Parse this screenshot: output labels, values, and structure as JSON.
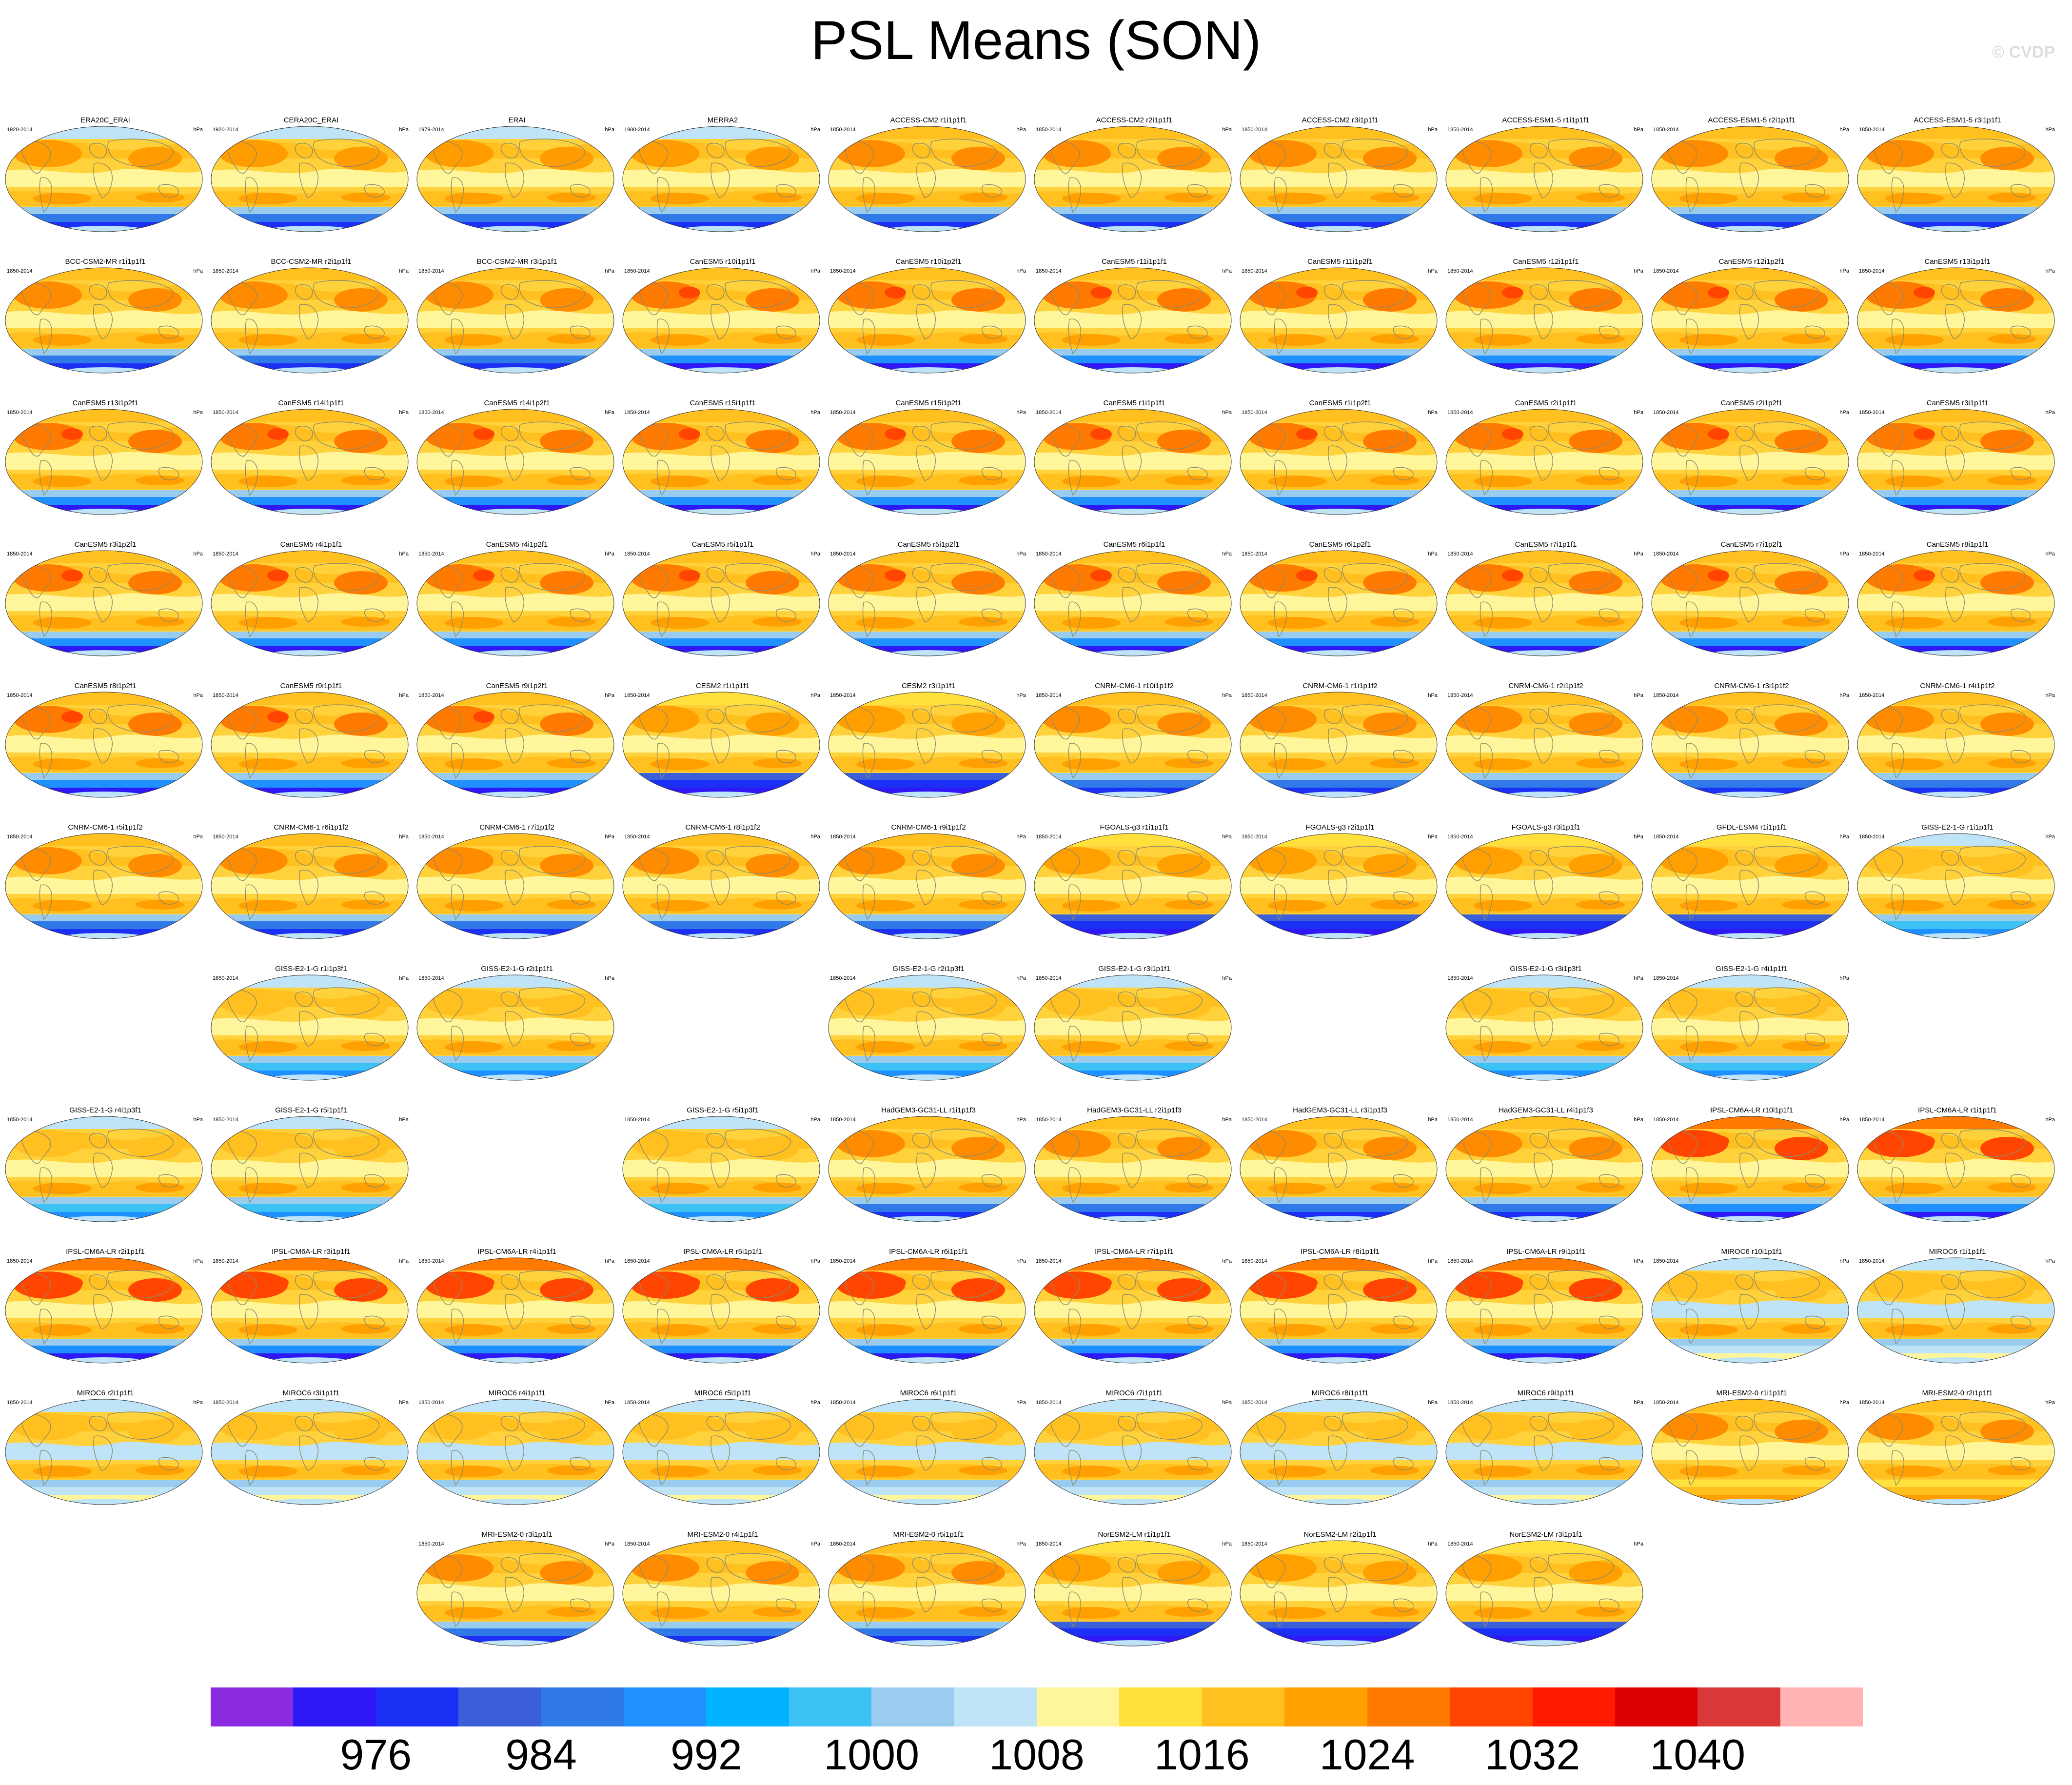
{
  "title": "PSL Means (SON)",
  "credit": "© CVDP",
  "colorbar": {
    "colors": [
      "#8a2be2",
      "#2e18f5",
      "#1b2ff5",
      "#3a5fd9",
      "#2f79e8",
      "#1e90ff",
      "#00b2ff",
      "#3cc2f5",
      "#99ccee",
      "#bfe3f7",
      "#fff59a",
      "#ffe03c",
      "#ffc020",
      "#ffa000",
      "#ff7a00",
      "#ff4500",
      "#ff1a00",
      "#dd0000",
      "#d93838",
      "#ffb3b3"
    ],
    "labels": [
      "976",
      "984",
      "992",
      "1000",
      "1008",
      "1016",
      "1024",
      "1032",
      "1040"
    ]
  },
  "panels": [
    {
      "name": "ERA20C_ERAI",
      "years": "1920-2014",
      "units": "hPa",
      "row": 0,
      "col": 0,
      "style": "obs"
    },
    {
      "name": "CERA20C_ERAI",
      "years": "1920-2014",
      "units": "hPa",
      "row": 0,
      "col": 1,
      "style": "obs"
    },
    {
      "name": "ERAI",
      "years": "1979-2014",
      "units": "hPa",
      "row": 0,
      "col": 2,
      "style": "obs"
    },
    {
      "name": "MERRA2",
      "years": "1980-2014",
      "units": "hPa",
      "row": 0,
      "col": 3,
      "style": "obs"
    },
    {
      "name": "ACCESS-CM2 r1i1p1f1",
      "years": "1850-2014",
      "units": "hPa",
      "row": 0,
      "col": 4,
      "style": "warm"
    },
    {
      "name": "ACCESS-CM2 r2i1p1f1",
      "years": "1850-2014",
      "units": "hPa",
      "row": 0,
      "col": 5,
      "style": "warm"
    },
    {
      "name": "ACCESS-CM2 r3i1p1f1",
      "years": "1850-2014",
      "units": "hPa",
      "row": 0,
      "col": 6,
      "style": "warm"
    },
    {
      "name": "ACCESS-ESM1-5 r1i1p1f1",
      "years": "1850-2014",
      "units": "hPa",
      "row": 0,
      "col": 7,
      "style": "warm"
    },
    {
      "name": "ACCESS-ESM1-5 r2i1p1f1",
      "years": "1850-2014",
      "units": "hPa",
      "row": 0,
      "col": 8,
      "style": "warm"
    },
    {
      "name": "ACCESS-ESM1-5 r3i1p1f1",
      "years": "1850-2014",
      "units": "hPa",
      "row": 0,
      "col": 9,
      "style": "warm"
    },
    {
      "name": "BCC-CSM2-MR r1i1p1f1",
      "years": "1850-2014",
      "units": "hPa",
      "row": 1,
      "col": 0,
      "style": "warm"
    },
    {
      "name": "BCC-CSM2-MR r2i1p1f1",
      "years": "1850-2014",
      "units": "hPa",
      "row": 1,
      "col": 1,
      "style": "warm"
    },
    {
      "name": "BCC-CSM2-MR r3i1p1f1",
      "years": "1850-2014",
      "units": "hPa",
      "row": 1,
      "col": 2,
      "style": "warm"
    },
    {
      "name": "CanESM5 r10i1p1f1",
      "years": "1850-2014",
      "units": "hPa",
      "row": 1,
      "col": 3,
      "style": "can"
    },
    {
      "name": "CanESM5 r10i1p2f1",
      "years": "1850-2014",
      "units": "hPa",
      "row": 1,
      "col": 4,
      "style": "can"
    },
    {
      "name": "CanESM5 r11i1p1f1",
      "years": "1850-2014",
      "units": "hPa",
      "row": 1,
      "col": 5,
      "style": "can"
    },
    {
      "name": "CanESM5 r11i1p2f1",
      "years": "1850-2014",
      "units": "hPa",
      "row": 1,
      "col": 6,
      "style": "can"
    },
    {
      "name": "CanESM5 r12i1p1f1",
      "years": "1850-2014",
      "units": "hPa",
      "row": 1,
      "col": 7,
      "style": "can"
    },
    {
      "name": "CanESM5 r12i1p2f1",
      "years": "1850-2014",
      "units": "hPa",
      "row": 1,
      "col": 8,
      "style": "can"
    },
    {
      "name": "CanESM5 r13i1p1f1",
      "years": "1850-2014",
      "units": "hPa",
      "row": 1,
      "col": 9,
      "style": "can"
    },
    {
      "name": "CanESM5 r13i1p2f1",
      "years": "1850-2014",
      "units": "hPa",
      "row": 2,
      "col": 0,
      "style": "can"
    },
    {
      "name": "CanESM5 r14i1p1f1",
      "years": "1850-2014",
      "units": "hPa",
      "row": 2,
      "col": 1,
      "style": "can"
    },
    {
      "name": "CanESM5 r14i1p2f1",
      "years": "1850-2014",
      "units": "hPa",
      "row": 2,
      "col": 2,
      "style": "can"
    },
    {
      "name": "CanESM5 r15i1p1f1",
      "years": "1850-2014",
      "units": "hPa",
      "row": 2,
      "col": 3,
      "style": "can"
    },
    {
      "name": "CanESM5 r15i1p2f1",
      "years": "1850-2014",
      "units": "hPa",
      "row": 2,
      "col": 4,
      "style": "can"
    },
    {
      "name": "CanESM5 r1i1p1f1",
      "years": "1850-2014",
      "units": "hPa",
      "row": 2,
      "col": 5,
      "style": "can"
    },
    {
      "name": "CanESM5 r1i1p2f1",
      "years": "1850-2014",
      "units": "hPa",
      "row": 2,
      "col": 6,
      "style": "can"
    },
    {
      "name": "CanESM5 r2i1p1f1",
      "years": "1850-2014",
      "units": "hPa",
      "row": 2,
      "col": 7,
      "style": "can"
    },
    {
      "name": "CanESM5 r2i1p2f1",
      "years": "1850-2014",
      "units": "hPa",
      "row": 2,
      "col": 8,
      "style": "can"
    },
    {
      "name": "CanESM5 r3i1p1f1",
      "years": "1850-2014",
      "units": "hPa",
      "row": 2,
      "col": 9,
      "style": "can"
    },
    {
      "name": "CanESM5 r3i1p2f1",
      "years": "1850-2014",
      "units": "hPa",
      "row": 3,
      "col": 0,
      "style": "can"
    },
    {
      "name": "CanESM5 r4i1p1f1",
      "years": "1850-2014",
      "units": "hPa",
      "row": 3,
      "col": 1,
      "style": "can"
    },
    {
      "name": "CanESM5 r4i1p2f1",
      "years": "1850-2014",
      "units": "hPa",
      "row": 3,
      "col": 2,
      "style": "can"
    },
    {
      "name": "CanESM5 r5i1p1f1",
      "years": "1850-2014",
      "units": "hPa",
      "row": 3,
      "col": 3,
      "style": "can"
    },
    {
      "name": "CanESM5 r5i1p2f1",
      "years": "1850-2014",
      "units": "hPa",
      "row": 3,
      "col": 4,
      "style": "can"
    },
    {
      "name": "CanESM5 r6i1p1f1",
      "years": "1850-2014",
      "units": "hPa",
      "row": 3,
      "col": 5,
      "style": "can"
    },
    {
      "name": "CanESM5 r6i1p2f1",
      "years": "1850-2014",
      "units": "hPa",
      "row": 3,
      "col": 6,
      "style": "can"
    },
    {
      "name": "CanESM5 r7i1p1f1",
      "years": "1850-2014",
      "units": "hPa",
      "row": 3,
      "col": 7,
      "style": "can"
    },
    {
      "name": "CanESM5 r7i1p2f1",
      "years": "1850-2014",
      "units": "hPa",
      "row": 3,
      "col": 8,
      "style": "can"
    },
    {
      "name": "CanESM5 r8i1p1f1",
      "years": "1850-2014",
      "units": "hPa",
      "row": 3,
      "col": 9,
      "style": "can"
    },
    {
      "name": "CanESM5 r8i1p2f1",
      "years": "1850-2014",
      "units": "hPa",
      "row": 4,
      "col": 0,
      "style": "can"
    },
    {
      "name": "CanESM5 r9i1p1f1",
      "years": "1850-2014",
      "units": "hPa",
      "row": 4,
      "col": 1,
      "style": "can"
    },
    {
      "name": "CanESM5 r9i1p2f1",
      "years": "1850-2014",
      "units": "hPa",
      "row": 4,
      "col": 2,
      "style": "can"
    },
    {
      "name": "CESM2 r1i1p1f1",
      "years": "1850-2014",
      "units": "hPa",
      "row": 4,
      "col": 3,
      "style": "deep"
    },
    {
      "name": "CESM2 r3i1p1f1",
      "years": "1850-2014",
      "units": "hPa",
      "row": 4,
      "col": 4,
      "style": "deep"
    },
    {
      "name": "CNRM-CM6-1 r10i1p1f2",
      "years": "1850-2014",
      "units": "hPa",
      "row": 4,
      "col": 5,
      "style": "warm"
    },
    {
      "name": "CNRM-CM6-1 r1i1p1f2",
      "years": "1850-2014",
      "units": "hPa",
      "row": 4,
      "col": 6,
      "style": "warm"
    },
    {
      "name": "CNRM-CM6-1 r2i1p1f2",
      "years": "1850-2014",
      "units": "hPa",
      "row": 4,
      "col": 7,
      "style": "warm"
    },
    {
      "name": "CNRM-CM6-1 r3i1p1f2",
      "years": "1850-2014",
      "units": "hPa",
      "row": 4,
      "col": 8,
      "style": "warm"
    },
    {
      "name": "CNRM-CM6-1 r4i1p1f2",
      "years": "1850-2014",
      "units": "hPa",
      "row": 4,
      "col": 9,
      "style": "warm"
    },
    {
      "name": "CNRM-CM6-1 r5i1p1f2",
      "years": "1850-2014",
      "units": "hPa",
      "row": 5,
      "col": 0,
      "style": "warm"
    },
    {
      "name": "CNRM-CM6-1 r6i1p1f2",
      "years": "1850-2014",
      "units": "hPa",
      "row": 5,
      "col": 1,
      "style": "warm"
    },
    {
      "name": "CNRM-CM6-1 r7i1p1f2",
      "years": "1850-2014",
      "units": "hPa",
      "row": 5,
      "col": 2,
      "style": "warm"
    },
    {
      "name": "CNRM-CM6-1 r8i1p1f2",
      "years": "1850-2014",
      "units": "hPa",
      "row": 5,
      "col": 3,
      "style": "warm"
    },
    {
      "name": "CNRM-CM6-1 r9i1p1f2",
      "years": "1850-2014",
      "units": "hPa",
      "row": 5,
      "col": 4,
      "style": "warm"
    },
    {
      "name": "FGOALS-g3 r1i1p1f1",
      "years": "1850-2014",
      "units": "hPa",
      "row": 5,
      "col": 5,
      "style": "deep"
    },
    {
      "name": "FGOALS-g3 r2i1p1f1",
      "years": "1850-2014",
      "units": "hPa",
      "row": 5,
      "col": 6,
      "style": "deep"
    },
    {
      "name": "FGOALS-g3 r3i1p1f1",
      "years": "1850-2014",
      "units": "hPa",
      "row": 5,
      "col": 7,
      "style": "deep"
    },
    {
      "name": "GFDL-ESM4 r1i1p1f1",
      "years": "1850-2014",
      "units": "hPa",
      "row": 5,
      "col": 8,
      "style": "deep"
    },
    {
      "name": "GISS-E2-1-G r1i1p1f1",
      "years": "1850-2014",
      "units": "hPa",
      "row": 5,
      "col": 9,
      "style": "giss"
    },
    {
      "name": "GISS-E2-1-G r1i1p3f1",
      "years": "1850-2014",
      "units": "hPa",
      "row": 6,
      "col": 1,
      "style": "giss"
    },
    {
      "name": "GISS-E2-1-G r2i1p1f1",
      "years": "1850-2014",
      "units": "hPa",
      "row": 6,
      "col": 2,
      "style": "giss"
    },
    {
      "name": "GISS-E2-1-G r2i1p3f1",
      "years": "1850-2014",
      "units": "hPa",
      "row": 6,
      "col": 4,
      "style": "giss"
    },
    {
      "name": "GISS-E2-1-G r3i1p1f1",
      "years": "1850-2014",
      "units": "hPa",
      "row": 6,
      "col": 5,
      "style": "giss"
    },
    {
      "name": "GISS-E2-1-G r3i1p3f1",
      "years": "1850-2014",
      "units": "hPa",
      "row": 6,
      "col": 7,
      "style": "giss"
    },
    {
      "name": "GISS-E2-1-G r4i1p1f1",
      "years": "1850-2014",
      "units": "hPa",
      "row": 6,
      "col": 8,
      "style": "giss"
    },
    {
      "name": "GISS-E2-1-G r4i1p3f1",
      "years": "1850-2014",
      "units": "hPa",
      "row": 7,
      "col": 0,
      "style": "giss"
    },
    {
      "name": "GISS-E2-1-G r5i1p1f1",
      "years": "1850-2014",
      "units": "hPa",
      "row": 7,
      "col": 1,
      "style": "giss"
    },
    {
      "name": "GISS-E2-1-G r5i1p3f1",
      "years": "1850-2014",
      "units": "hPa",
      "row": 7,
      "col": 3,
      "style": "giss"
    },
    {
      "name": "HadGEM3-GC31-LL r1i1p1f3",
      "years": "1850-2014",
      "units": "hPa",
      "row": 7,
      "col": 4,
      "style": "warm"
    },
    {
      "name": "HadGEM3-GC31-LL r2i1p1f3",
      "years": "1850-2014",
      "units": "hPa",
      "row": 7,
      "col": 5,
      "style": "warm"
    },
    {
      "name": "HadGEM3-GC31-LL r3i1p1f3",
      "years": "1850-2014",
      "units": "hPa",
      "row": 7,
      "col": 6,
      "style": "warm"
    },
    {
      "name": "HadGEM3-GC31-LL r4i1p1f3",
      "years": "1850-2014",
      "units": "hPa",
      "row": 7,
      "col": 7,
      "style": "warm"
    },
    {
      "name": "IPSL-CM6A-LR r10i1p1f1",
      "years": "1850-2014",
      "units": "hPa",
      "row": 7,
      "col": 8,
      "style": "ipsl"
    },
    {
      "name": "IPSL-CM6A-LR r1i1p1f1",
      "years": "1850-2014",
      "units": "hPa",
      "row": 7,
      "col": 9,
      "style": "ipsl"
    },
    {
      "name": "IPSL-CM6A-LR r2i1p1f1",
      "years": "1850-2014",
      "units": "hPa",
      "row": 8,
      "col": 0,
      "style": "ipsl"
    },
    {
      "name": "IPSL-CM6A-LR r3i1p1f1",
      "years": "1850-2014",
      "units": "hPa",
      "row": 8,
      "col": 1,
      "style": "ipsl"
    },
    {
      "name": "IPSL-CM6A-LR r4i1p1f1",
      "years": "1850-2014",
      "units": "hPa",
      "row": 8,
      "col": 2,
      "style": "ipsl"
    },
    {
      "name": "IPSL-CM6A-LR r5i1p1f1",
      "years": "1850-2014",
      "units": "hPa",
      "row": 8,
      "col": 3,
      "style": "ipsl"
    },
    {
      "name": "IPSL-CM6A-LR r6i1p1f1",
      "years": "1850-2014",
      "units": "hPa",
      "row": 8,
      "col": 4,
      "style": "ipsl"
    },
    {
      "name": "IPSL-CM6A-LR r7i1p1f1",
      "years": "1850-2014",
      "units": "hPa",
      "row": 8,
      "col": 5,
      "style": "ipsl"
    },
    {
      "name": "IPSL-CM6A-LR r8i1p1f1",
      "years": "1850-2014",
      "units": "hPa",
      "row": 8,
      "col": 6,
      "style": "ipsl"
    },
    {
      "name": "IPSL-CM6A-LR r9i1p1f1",
      "years": "1850-2014",
      "units": "hPa",
      "row": 8,
      "col": 7,
      "style": "ipsl"
    },
    {
      "name": "MIROC6 r10i1p1f1",
      "years": "1850-2014",
      "units": "hPa",
      "row": 8,
      "col": 8,
      "style": "miroc"
    },
    {
      "name": "MIROC6 r1i1p1f1",
      "years": "1850-2014",
      "units": "hPa",
      "row": 8,
      "col": 9,
      "style": "miroc"
    },
    {
      "name": "MIROC6 r2i1p1f1",
      "years": "1850-2014",
      "units": "hPa",
      "row": 9,
      "col": 0,
      "style": "miroc"
    },
    {
      "name": "MIROC6 r3i1p1f1",
      "years": "1850-2014",
      "units": "hPa",
      "row": 9,
      "col": 1,
      "style": "miroc"
    },
    {
      "name": "MIROC6 r4i1p1f1",
      "years": "1850-2014",
      "units": "hPa",
      "row": 9,
      "col": 2,
      "style": "miroc"
    },
    {
      "name": "MIROC6 r5i1p1f1",
      "years": "1850-2014",
      "units": "hPa",
      "row": 9,
      "col": 3,
      "style": "miroc"
    },
    {
      "name": "MIROC6 r6i1p1f1",
      "years": "1850-2014",
      "units": "hPa",
      "row": 9,
      "col": 4,
      "style": "miroc"
    },
    {
      "name": "MIROC6 r7i1p1f1",
      "years": "1850-2014",
      "units": "hPa",
      "row": 9,
      "col": 5,
      "style": "miroc"
    },
    {
      "name": "MIROC6 r8i1p1f1",
      "years": "1850-2014",
      "units": "hPa",
      "row": 9,
      "col": 6,
      "style": "miroc"
    },
    {
      "name": "MIROC6 r9i1p1f1",
      "years": "1850-2014",
      "units": "hPa",
      "row": 9,
      "col": 7,
      "style": "miroc"
    },
    {
      "name": "MRI-ESM2-0 r1i1p1f1",
      "years": "1850-2014",
      "units": "hPa",
      "row": 9,
      "col": 8,
      "style": "mri"
    },
    {
      "name": "MRI-ESM2-0 r2i1p1f1",
      "years": "1850-2014",
      "units": "hPa",
      "row": 9,
      "col": 9,
      "style": "mri"
    },
    {
      "name": "MRI-ESM2-0 r3i1p1f1",
      "years": "1850-2014",
      "units": "hPa",
      "row": 10,
      "col": 2,
      "style": "warm"
    },
    {
      "name": "MRI-ESM2-0 r4i1p1f1",
      "years": "1850-2014",
      "units": "hPa",
      "row": 10,
      "col": 3,
      "style": "warm"
    },
    {
      "name": "MRI-ESM2-0 r5i1p1f1",
      "years": "1850-2014",
      "units": "hPa",
      "row": 10,
      "col": 4,
      "style": "warm"
    },
    {
      "name": "NorESM2-LM r1i1p1f1",
      "years": "1850-2014",
      "units": "hPa",
      "row": 10,
      "col": 5,
      "style": "deep"
    },
    {
      "name": "NorESM2-LM r2i1p1f1",
      "years": "1850-2014",
      "units": "hPa",
      "row": 10,
      "col": 6,
      "style": "deep"
    },
    {
      "name": "NorESM2-LM r3i1p1f1",
      "years": "1850-2014",
      "units": "hPa",
      "row": 10,
      "col": 7,
      "style": "deep"
    }
  ]
}
